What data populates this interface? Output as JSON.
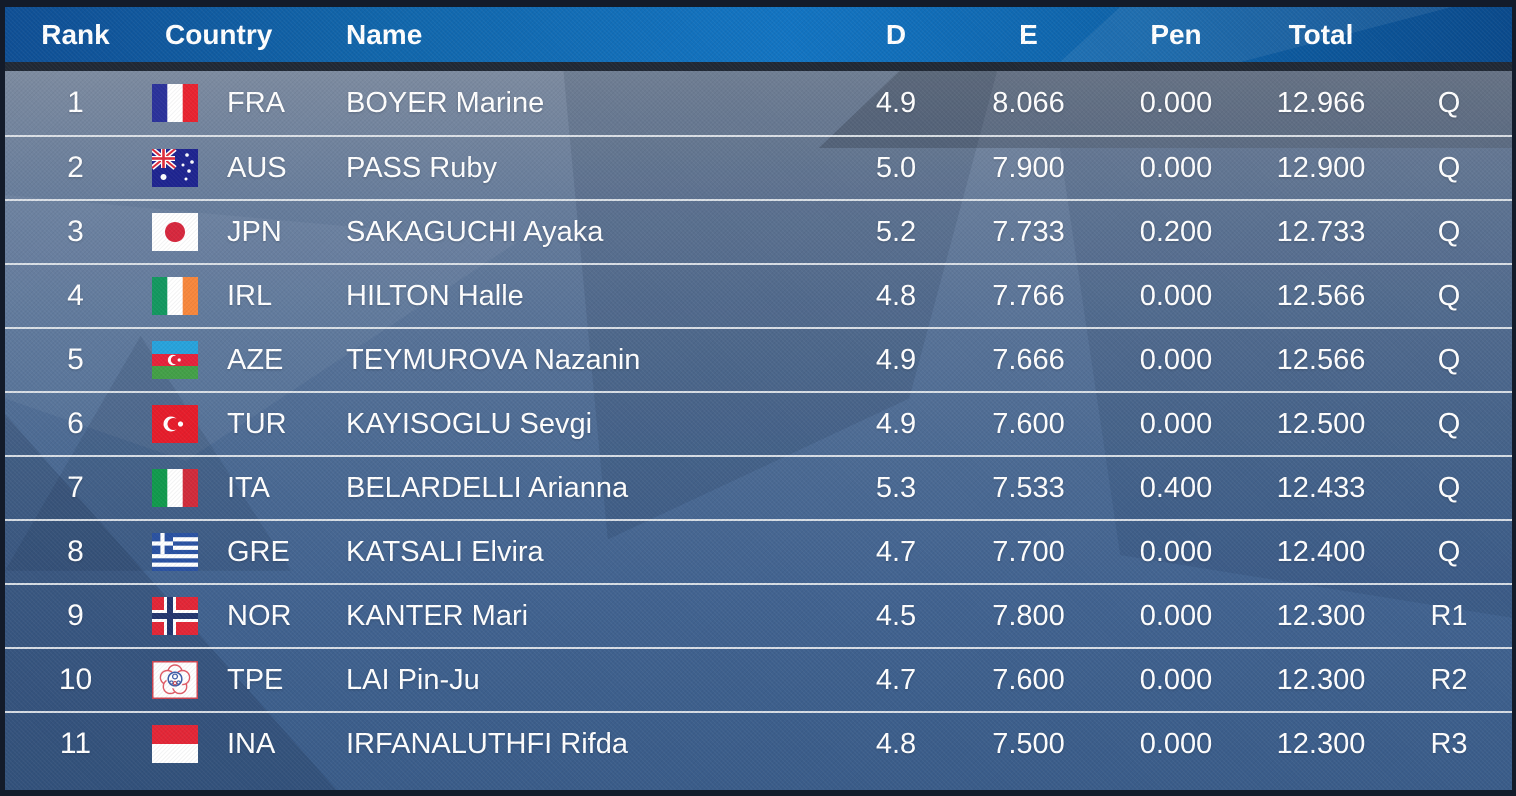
{
  "table": {
    "columns": {
      "rank": "Rank",
      "country": "Country",
      "name": "Name",
      "d": "D",
      "e": "E",
      "pen": "Pen",
      "total": "Total",
      "qual": ""
    },
    "rows": [
      {
        "rank": "1",
        "noc": "FRA",
        "flag_icon": "flag-fra-icon",
        "name": "BOYER Marine",
        "d": "4.9",
        "e": "8.066",
        "pen": "0.000",
        "total": "12.966",
        "qual": "Q"
      },
      {
        "rank": "2",
        "noc": "AUS",
        "flag_icon": "flag-aus-icon",
        "name": "PASS Ruby",
        "d": "5.0",
        "e": "7.900",
        "pen": "0.000",
        "total": "12.900",
        "qual": "Q"
      },
      {
        "rank": "3",
        "noc": "JPN",
        "flag_icon": "flag-jpn-icon",
        "name": "SAKAGUCHI Ayaka",
        "d": "5.2",
        "e": "7.733",
        "pen": "0.200",
        "total": "12.733",
        "qual": "Q"
      },
      {
        "rank": "4",
        "noc": "IRL",
        "flag_icon": "flag-irl-icon",
        "name": "HILTON Halle",
        "d": "4.8",
        "e": "7.766",
        "pen": "0.000",
        "total": "12.566",
        "qual": "Q"
      },
      {
        "rank": "5",
        "noc": "AZE",
        "flag_icon": "flag-aze-icon",
        "name": "TEYMUROVA Nazanin",
        "d": "4.9",
        "e": "7.666",
        "pen": "0.000",
        "total": "12.566",
        "qual": "Q"
      },
      {
        "rank": "6",
        "noc": "TUR",
        "flag_icon": "flag-tur-icon",
        "name": "KAYISOGLU Sevgi",
        "d": "4.9",
        "e": "7.600",
        "pen": "0.000",
        "total": "12.500",
        "qual": "Q"
      },
      {
        "rank": "7",
        "noc": "ITA",
        "flag_icon": "flag-ita-icon",
        "name": "BELARDELLI Arianna",
        "d": "5.3",
        "e": "7.533",
        "pen": "0.400",
        "total": "12.433",
        "qual": "Q"
      },
      {
        "rank": "8",
        "noc": "GRE",
        "flag_icon": "flag-gre-icon",
        "name": "KATSALI Elvira",
        "d": "4.7",
        "e": "7.700",
        "pen": "0.000",
        "total": "12.400",
        "qual": "Q"
      },
      {
        "rank": "9",
        "noc": "NOR",
        "flag_icon": "flag-nor-icon",
        "name": "KANTER Mari",
        "d": "4.5",
        "e": "7.800",
        "pen": "0.000",
        "total": "12.300",
        "qual": "R1"
      },
      {
        "rank": "10",
        "noc": "TPE",
        "flag_icon": "flag-tpe-icon",
        "name": "LAI Pin-Ju",
        "d": "4.7",
        "e": "7.600",
        "pen": "0.000",
        "total": "12.300",
        "qual": "R2"
      },
      {
        "rank": "11",
        "noc": "INA",
        "flag_icon": "flag-ina-icon",
        "name": "IRFANALUTHFI Rifda",
        "d": "4.8",
        "e": "7.500",
        "pen": "0.000",
        "total": "12.300",
        "qual": "R3"
      }
    ]
  },
  "colors": {
    "header_background": "#1068b2",
    "header_text": "#ffffff",
    "row_text": "#ffffff",
    "row_separator": "#e4e8ed",
    "frame_border": "#131b2a",
    "background_top": "#8d97a5",
    "background_bottom": "#3a5c89"
  }
}
